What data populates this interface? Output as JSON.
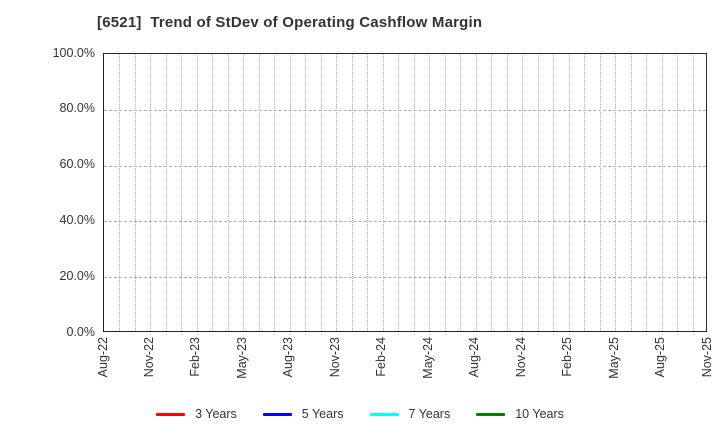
{
  "chart_data": {
    "type": "line",
    "title": "[6521]  Trend of StDev of Operating Cashflow Margin",
    "x_axis": {
      "tick_labels": [
        "Aug-22",
        "Nov-22",
        "Feb-23",
        "May-23",
        "Aug-23",
        "Nov-23",
        "Feb-24",
        "May-24",
        "Aug-24",
        "Nov-24",
        "Feb-25",
        "May-25",
        "Aug-25",
        "Nov-25"
      ],
      "months_total": 40,
      "label_every_n_months": 3,
      "minor_grid": "monthly dotted"
    },
    "y_axis": {
      "ticks": [
        {
          "label": "100.0%",
          "value": 100
        },
        {
          "label": "80.0%",
          "value": 80
        },
        {
          "label": "60.0%",
          "value": 60
        },
        {
          "label": "40.0%",
          "value": 40
        },
        {
          "label": "20.0%",
          "value": 20
        },
        {
          "label": "0.0%",
          "value": 0
        }
      ],
      "ylim": [
        0,
        100
      ],
      "major_grid": "dashed"
    },
    "grid": true,
    "legend_position": "bottom-center",
    "series": [
      {
        "name": "3 Years",
        "color": "#ff0000",
        "values": []
      },
      {
        "name": "5 Years",
        "color": "#0000ff",
        "values": []
      },
      {
        "name": "7 Years",
        "color": "#00ffff",
        "values": []
      },
      {
        "name": "10 Years",
        "color": "#008000",
        "values": []
      }
    ],
    "colors": {
      "frame": "#262626",
      "grid": "#b0b0b0",
      "text": "#333333",
      "background": "#ffffff"
    }
  }
}
